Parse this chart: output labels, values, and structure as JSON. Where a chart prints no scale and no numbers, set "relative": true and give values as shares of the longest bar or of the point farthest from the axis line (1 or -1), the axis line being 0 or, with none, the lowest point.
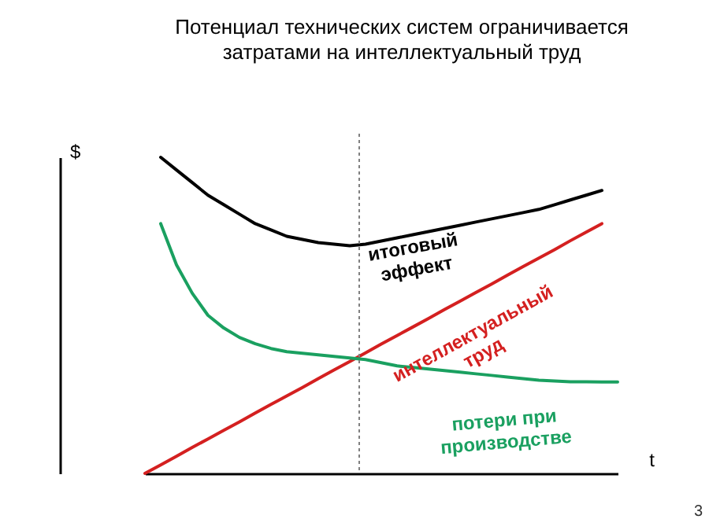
{
  "chart_data": {
    "type": "line",
    "title": "Потенциал технических систем ограничивается\nзатратами на интеллектуальный труд",
    "xlabel": "t",
    "ylabel": "$",
    "relative": true,
    "tick_labels": false,
    "grid": false,
    "marker": "none",
    "line_style": "solid",
    "categories": [
      null,
      null,
      null,
      null,
      null,
      null,
      null,
      null,
      null,
      null,
      null,
      null,
      null,
      null,
      null,
      null,
      null,
      null,
      null,
      null,
      null,
      null,
      null,
      null,
      null,
      null,
      null,
      null,
      null,
      null,
      null
    ],
    "series": [
      {
        "name": "итоговый эффект",
        "color": "#000000",
        "values": [
          null,
          1.0,
          0.96,
          0.92,
          0.88,
          0.85,
          0.82,
          0.79,
          0.77,
          0.75,
          0.74,
          0.73,
          0.725,
          0.72,
          0.725,
          0.735,
          0.745,
          0.755,
          0.765,
          0.775,
          0.785,
          0.795,
          0.805,
          0.815,
          0.825,
          0.835,
          0.85,
          0.865,
          0.88,
          0.895,
          null
        ]
      },
      {
        "name": "интеллектуальный труд",
        "color": "#d42020",
        "values": [
          0,
          0.027,
          0.054,
          0.082,
          0.109,
          0.136,
          0.163,
          0.191,
          0.218,
          0.245,
          0.272,
          0.3,
          0.327,
          0.354,
          0.381,
          0.409,
          0.436,
          0.463,
          0.49,
          0.518,
          0.545,
          0.572,
          0.599,
          0.627,
          0.654,
          0.681,
          0.708,
          0.736,
          0.763,
          0.79,
          null
        ]
      },
      {
        "name": "потери при производстве",
        "color": "#1aa060",
        "values": [
          null,
          0.79,
          0.66,
          0.57,
          0.5,
          0.46,
          0.43,
          0.41,
          0.395,
          0.385,
          0.38,
          0.375,
          0.37,
          0.365,
          0.36,
          0.35,
          0.34,
          0.335,
          0.33,
          0.325,
          0.32,
          0.315,
          0.31,
          0.305,
          0.3,
          0.295,
          0.292,
          0.29,
          0.29,
          0.289,
          0.289
        ]
      }
    ],
    "annotations": [
      "3"
    ]
  }
}
